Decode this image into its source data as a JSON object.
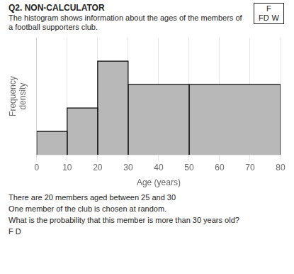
{
  "chart_data": {
    "type": "histogram",
    "title": "Q2. NON-CALCULATOR",
    "subtitle": "The histogram shows information about the ages of the members of a football supporters club.",
    "x_label": "Age (years)",
    "y_label": "Frequency\ndensity",
    "bins": [
      0,
      10,
      20,
      30,
      50,
      80
    ],
    "values": [
      1,
      2,
      4,
      3,
      3
    ],
    "color": "#b8b8b8",
    "xlim": [
      0,
      80
    ],
    "ylim": [
      0,
      5
    ],
    "xticks": [
      0,
      10,
      20,
      30,
      40,
      50,
      60,
      70,
      80
    ],
    "tick_labels": "x",
    "grid": true,
    "annotations": [
      "F",
      "FD",
      "W",
      "There are 20 members aged between 25 and 30",
      "One member of the club is chosen at random.",
      "What is the probability that this member is more than 30 years old?",
      "F D"
    ]
  }
}
